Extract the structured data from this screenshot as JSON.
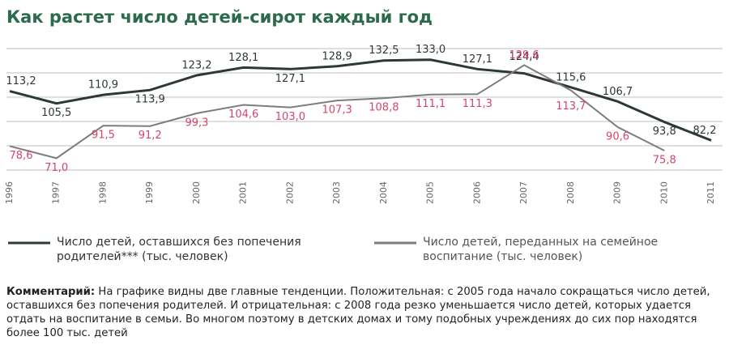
{
  "chart_data": {
    "type": "line",
    "title": "Как растет число детей-сирот каждый год",
    "categories": [
      "1996",
      "1997",
      "1998",
      "1999",
      "2000",
      "2001",
      "2002",
      "2003",
      "2004",
      "2005",
      "2006",
      "2007",
      "2008",
      "2009",
      "2010",
      "2011"
    ],
    "ylim": [
      61,
      140
    ],
    "series": [
      {
        "name": "Число детей, оставшихся без попечения родителей*** (тыс. человек)",
        "color": "#2e3838",
        "label_color": "#2e3838",
        "values": [
          113.2,
          105.5,
          110.9,
          113.9,
          123.2,
          128.1,
          127.1,
          128.9,
          132.5,
          133.0,
          127.1,
          124.4,
          115.6,
          106.7,
          93.8,
          82.2
        ],
        "value_labels": [
          "113,2",
          "105,5",
          "110,9",
          "113,9",
          "123,2",
          "128,1",
          "127,1",
          "128,9",
          "132,5",
          "133,0",
          "127,1",
          "124,4",
          "115,6",
          "106,7",
          "93,8",
          "82,2"
        ]
      },
      {
        "name": "Число детей, переданных на семейное воспитание (тыс. человек)",
        "color": "#7d7d7d",
        "label_color": "#d4456b",
        "values": [
          78.6,
          71.0,
          91.5,
          91.2,
          99.3,
          104.6,
          103.0,
          107.3,
          108.8,
          111.1,
          111.3,
          129.6,
          113.7,
          90.6,
          75.8,
          null
        ],
        "value_labels": [
          "78,6",
          "71,0",
          "91,5",
          "91,2",
          "99,3",
          "104,6",
          "103,0",
          "107,3",
          "108,8",
          "111,1",
          "111,3",
          "129,6",
          "113,7",
          "90,6",
          "75,8",
          null
        ]
      }
    ],
    "comment_label": "Комментарий:",
    "comment_text": "На графике видны две главные тенденции. Положительная: с 2005 года начало сокращаться число детей, оставшихся без попечения родителей. И отрицательная: с 2008 года резко уменьшается число детей, которых удается отдать на воспитание в семьи. Во многом поэтому в детских домах и тому подобных учреждениях до сих пор находятся более 100 тыс. детей"
  }
}
